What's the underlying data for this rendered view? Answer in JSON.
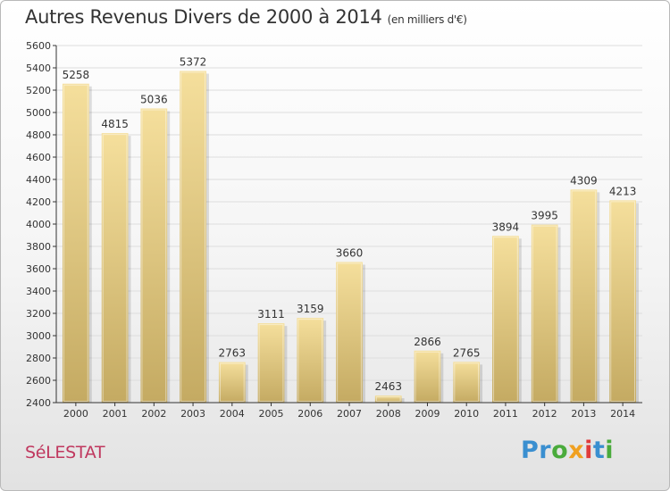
{
  "header": {
    "title": "Autres Revenus Divers de 2000 à 2014",
    "subtitle": "(en milliers d'€)"
  },
  "footer": {
    "city": "SéLESTAT",
    "logo_letters": [
      {
        "char": "P",
        "color": "#3a8fd0"
      },
      {
        "char": "r",
        "color": "#3a8fd0"
      },
      {
        "char": "o",
        "color": "#4aab3c"
      },
      {
        "char": "x",
        "color": "#f0a020"
      },
      {
        "char": "i",
        "color": "#e03a3a"
      },
      {
        "char": "t",
        "color": "#3a8fd0"
      },
      {
        "char": "i",
        "color": "#4aab3c"
      }
    ]
  },
  "chart_data": {
    "type": "bar",
    "title": "Autres Revenus Divers de 2000 à 2014",
    "subtitle": "(en milliers d'€)",
    "categories": [
      "2000",
      "2001",
      "2002",
      "2003",
      "2004",
      "2005",
      "2006",
      "2007",
      "2008",
      "2009",
      "2010",
      "2011",
      "2012",
      "2013",
      "2014"
    ],
    "values": [
      5258,
      4815,
      5036,
      5372,
      2763,
      3111,
      3159,
      3660,
      2463,
      2866,
      2765,
      3894,
      3995,
      4309,
      4213
    ],
    "ylim": [
      2400,
      5600
    ],
    "yticks": [
      2400,
      2600,
      2800,
      3000,
      3200,
      3400,
      3600,
      3800,
      4000,
      4200,
      4400,
      4600,
      4800,
      5000,
      5200,
      5400,
      5600
    ],
    "grid": true,
    "colors": {
      "bar_top": "#f5df9c",
      "bar_bottom": "#c4aa62",
      "grid": "#dddddd",
      "axis": "#333333"
    }
  }
}
